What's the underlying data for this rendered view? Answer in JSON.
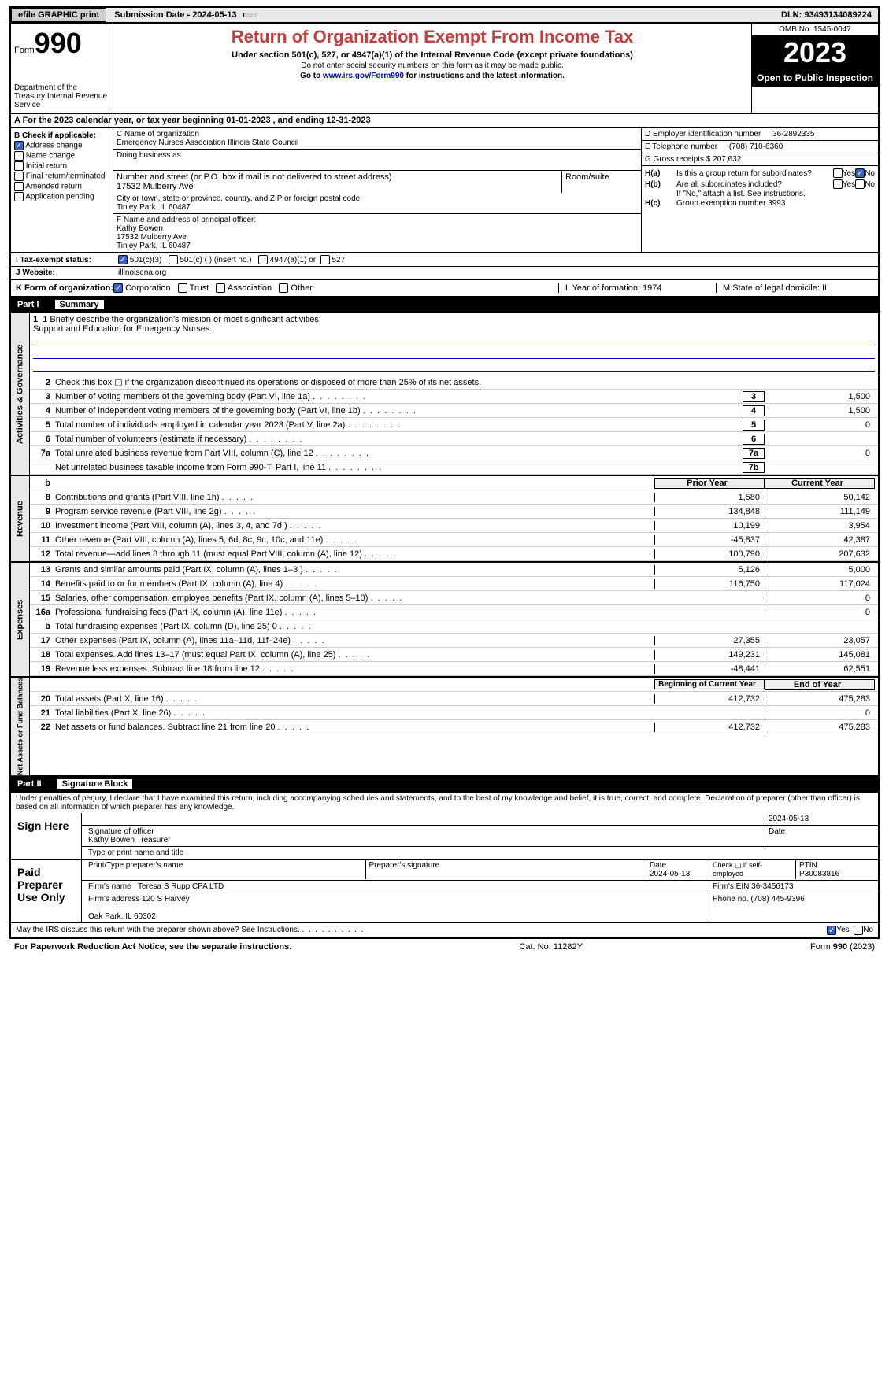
{
  "topbar": {
    "efile": "efile GRAPHIC print",
    "submission_label": "Submission Date - 2024-05-13",
    "dln": "DLN: 93493134089224"
  },
  "header": {
    "form_word": "Form",
    "form_num": "990",
    "dept": "Department of the Treasury Internal Revenue Service",
    "title": "Return of Organization Exempt From Income Tax",
    "subtitle": "Under section 501(c), 527, or 4947(a)(1) of the Internal Revenue Code (except private foundations)",
    "note1": "Do not enter social security numbers on this form as it may be made public.",
    "note2_pre": "Go to ",
    "note2_link": "www.irs.gov/Form990",
    "note2_post": " for instructions and the latest information.",
    "omb": "OMB No. 1545-0047",
    "year": "2023",
    "open": "Open to Public Inspection"
  },
  "sectionA": "A For the 2023 calendar year, or tax year beginning 01-01-2023   , and ending 12-31-2023",
  "boxB": {
    "hdr": "B Check if applicable:",
    "items": [
      "Address change",
      "Name change",
      "Initial return",
      "Final return/terminated",
      "Amended return",
      "Application pending"
    ],
    "checked": [
      true,
      false,
      false,
      false,
      false,
      false
    ]
  },
  "boxC": {
    "name_lbl": "C Name of organization",
    "name": "Emergency Nurses Association Illinois State Council",
    "dba_lbl": "Doing business as",
    "addr_lbl": "Number and street (or P.O. box if mail is not delivered to street address)",
    "addr": "17532 Mulberry Ave",
    "room_lbl": "Room/suite",
    "city_lbl": "City or town, state or province, country, and ZIP or foreign postal code",
    "city": "Tinley Park, IL  60487"
  },
  "boxD": {
    "lbl": "D Employer identification number",
    "val": "36-2892335"
  },
  "boxE": {
    "lbl": "E Telephone number",
    "val": "(708) 710-6360"
  },
  "boxG": {
    "lbl": "G Gross receipts $ 207,632"
  },
  "boxF": {
    "lbl": "F  Name and address of principal officer:",
    "name": "Kathy Bowen",
    "addr1": "17532 Mulberry Ave",
    "addr2": "Tinley Park, IL  60487"
  },
  "boxH": {
    "a_lbl": "H(a)  Is this a group return for subordinates?",
    "b_lbl": "H(b)  Are all subordinates included?",
    "b_note": "If \"No,\" attach a list. See instructions.",
    "c_lbl": "H(c)  Group exemption number   ",
    "c_val": "3993"
  },
  "rowI": {
    "lbl": "I  Tax-exempt status:",
    "opts": [
      "501(c)(3)",
      "501(c) (  ) (insert no.)",
      "4947(a)(1) or",
      "527"
    ]
  },
  "rowJ": {
    "lbl": "J  Website:",
    "val": "illinoisena.org"
  },
  "rowK": {
    "lbl": "K Form of organization:",
    "opts": [
      "Corporation",
      "Trust",
      "Association",
      "Other"
    ],
    "L": "L Year of formation: 1974",
    "M": "M State of legal domicile: IL"
  },
  "part1": {
    "num": "Part I",
    "title": "Summary"
  },
  "mission": {
    "q": "1  Briefly describe the organization's mission or most significant activities:",
    "val": "Support and Education for Emergency Nurses"
  },
  "lines_gov": [
    {
      "n": "2",
      "t": "Check this box ▢ if the organization discontinued its operations or disposed of more than 25% of its net assets.",
      "b": "",
      "v": ""
    },
    {
      "n": "3",
      "t": "Number of voting members of the governing body (Part VI, line 1a)",
      "b": "3",
      "v": "1,500"
    },
    {
      "n": "4",
      "t": "Number of independent voting members of the governing body (Part VI, line 1b)",
      "b": "4",
      "v": "1,500"
    },
    {
      "n": "5",
      "t": "Total number of individuals employed in calendar year 2023 (Part V, line 2a)",
      "b": "5",
      "v": "0"
    },
    {
      "n": "6",
      "t": "Total number of volunteers (estimate if necessary)",
      "b": "6",
      "v": ""
    },
    {
      "n": "7a",
      "t": "Total unrelated business revenue from Part VIII, column (C), line 12",
      "b": "7a",
      "v": "0"
    },
    {
      "n": "",
      "t": "Net unrelated business taxable income from Form 990-T, Part I, line 11",
      "b": "7b",
      "v": ""
    }
  ],
  "rev_hdr": {
    "b": "b",
    "py": "Prior Year",
    "cy": "Current Year"
  },
  "lines_rev": [
    {
      "n": "8",
      "t": "Contributions and grants (Part VIII, line 1h)",
      "py": "1,580",
      "cy": "50,142"
    },
    {
      "n": "9",
      "t": "Program service revenue (Part VIII, line 2g)",
      "py": "134,848",
      "cy": "111,149"
    },
    {
      "n": "10",
      "t": "Investment income (Part VIII, column (A), lines 3, 4, and 7d )",
      "py": "10,199",
      "cy": "3,954"
    },
    {
      "n": "11",
      "t": "Other revenue (Part VIII, column (A), lines 5, 6d, 8c, 9c, 10c, and 11e)",
      "py": "-45,837",
      "cy": "42,387"
    },
    {
      "n": "12",
      "t": "Total revenue—add lines 8 through 11 (must equal Part VIII, column (A), line 12)",
      "py": "100,790",
      "cy": "207,632"
    }
  ],
  "lines_exp": [
    {
      "n": "13",
      "t": "Grants and similar amounts paid (Part IX, column (A), lines 1–3 )",
      "py": "5,126",
      "cy": "5,000"
    },
    {
      "n": "14",
      "t": "Benefits paid to or for members (Part IX, column (A), line 4)",
      "py": "116,750",
      "cy": "117,024"
    },
    {
      "n": "15",
      "t": "Salaries, other compensation, employee benefits (Part IX, column (A), lines 5–10)",
      "py": "",
      "cy": "0"
    },
    {
      "n": "16a",
      "t": "Professional fundraising fees (Part IX, column (A), line 11e)",
      "py": "",
      "cy": "0"
    },
    {
      "n": "b",
      "t": "Total fundraising expenses (Part IX, column (D), line 25) 0",
      "py": "shaded",
      "cy": "shaded"
    },
    {
      "n": "17",
      "t": "Other expenses (Part IX, column (A), lines 11a–11d, 11f–24e)",
      "py": "27,355",
      "cy": "23,057"
    },
    {
      "n": "18",
      "t": "Total expenses. Add lines 13–17 (must equal Part IX, column (A), line 25)",
      "py": "149,231",
      "cy": "145,081"
    },
    {
      "n": "19",
      "t": "Revenue less expenses. Subtract line 18 from line 12",
      "py": "-48,441",
      "cy": "62,551"
    }
  ],
  "na_hdr": {
    "py": "Beginning of Current Year",
    "cy": "End of Year"
  },
  "lines_na": [
    {
      "n": "20",
      "t": "Total assets (Part X, line 16)",
      "py": "412,732",
      "cy": "475,283"
    },
    {
      "n": "21",
      "t": "Total liabilities (Part X, line 26)",
      "py": "",
      "cy": "0"
    },
    {
      "n": "22",
      "t": "Net assets or fund balances. Subtract line 21 from line 20",
      "py": "412,732",
      "cy": "475,283"
    }
  ],
  "part2": {
    "num": "Part II",
    "title": "Signature Block"
  },
  "penalty": "Under penalties of perjury, I declare that I have examined this return, including accompanying schedules and statements, and to the best of my knowledge and belief, it is true, correct, and complete. Declaration of preparer (other than officer) is based on all information of which preparer has any knowledge.",
  "sign": {
    "here": "Sign Here",
    "sig_lbl": "Signature of officer",
    "date_lbl": "Date",
    "date": "2024-05-13",
    "name": "Kathy Bowen Treasurer",
    "name_lbl": "Type or print name and title"
  },
  "paid": {
    "here": "Paid Preparer Use Only",
    "prep_name_lbl": "Print/Type preparer's name",
    "prep_sig_lbl": "Preparer's signature",
    "date_lbl": "Date",
    "date": "2024-05-13",
    "self_lbl": "Check ▢ if self-employed",
    "ptin_lbl": "PTIN",
    "ptin": "P30083816",
    "firm_lbl": "Firm's name  ",
    "firm": "Teresa S Rupp CPA LTD",
    "ein_lbl": "Firm's EIN  36-3456173",
    "addr_lbl": "Firm's address 120 S Harvey",
    "addr2": "Oak Park, IL  60302",
    "phone_lbl": "Phone no. (708) 445-9396"
  },
  "may_discuss": "May the IRS discuss this return with the preparer shown above? See Instructions.",
  "footer": {
    "left": "For Paperwork Reduction Act Notice, see the separate instructions.",
    "mid": "Cat. No. 11282Y",
    "right": "Form 990 (2023)"
  },
  "vtabs": {
    "gov": "Activities & Governance",
    "rev": "Revenue",
    "exp": "Expenses",
    "na": "Net Assets or Fund Balances"
  }
}
